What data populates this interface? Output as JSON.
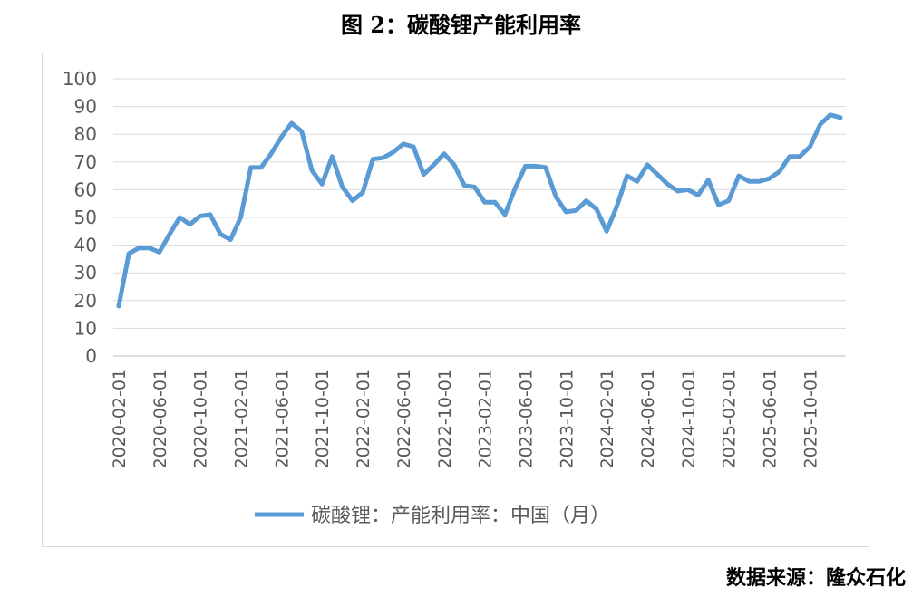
{
  "title": "图 2：碳酸锂产能利用率",
  "source": "数据来源：隆众石化",
  "chart_data": {
    "type": "line",
    "ylim": [
      0,
      100
    ],
    "yticks": [
      0,
      10,
      20,
      30,
      40,
      50,
      60,
      70,
      80,
      90,
      100
    ],
    "grid": true,
    "legend_position": "bottom",
    "x": [
      "2020-02-01",
      "2020-03-01",
      "2020-04-01",
      "2020-05-01",
      "2020-06-01",
      "2020-07-01",
      "2020-08-01",
      "2020-09-01",
      "2020-10-01",
      "2020-11-01",
      "2020-12-01",
      "2021-01-01",
      "2021-02-01",
      "2021-03-01",
      "2021-04-01",
      "2021-05-01",
      "2021-06-01",
      "2021-07-01",
      "2021-08-01",
      "2021-09-01",
      "2021-10-01",
      "2021-11-01",
      "2021-12-01",
      "2022-01-01",
      "2022-02-01",
      "2022-03-01",
      "2022-04-01",
      "2022-05-01",
      "2022-06-01",
      "2022-07-01",
      "2022-08-01",
      "2022-09-01",
      "2022-10-01",
      "2022-11-01",
      "2022-12-01",
      "2023-01-01",
      "2023-02-01",
      "2023-03-01",
      "2023-04-01",
      "2023-05-01",
      "2023-06-01",
      "2023-07-01",
      "2023-08-01",
      "2023-09-01",
      "2023-10-01",
      "2023-11-01",
      "2023-12-01",
      "2024-01-01",
      "2024-02-01",
      "2024-03-01",
      "2024-04-01",
      "2024-05-01",
      "2024-06-01",
      "2024-07-01",
      "2024-08-01",
      "2024-09-01",
      "2024-10-01",
      "2024-11-01",
      "2024-12-01",
      "2025-01-01",
      "2025-02-01",
      "2025-03-01",
      "2025-04-01",
      "2025-05-01",
      "2025-06-01",
      "2025-07-01",
      "2025-08-01",
      "2025-09-01",
      "2025-10-01",
      "2025-11-01",
      "2025-12-01",
      "2026-01-01"
    ],
    "xtick_labels": [
      "2020-02-01",
      "2020-06-01",
      "2020-10-01",
      "2021-02-01",
      "2021-06-01",
      "2021-10-01",
      "2022-02-01",
      "2022-06-01",
      "2022-10-01",
      "2023-02-01",
      "2023-06-01",
      "2023-10-01",
      "2024-02-01",
      "2024-06-01",
      "2024-10-01",
      "2025-02-01",
      "2025-06-01",
      "2025-10-01"
    ],
    "series": [
      {
        "name": "碳酸锂：产能利用率：中国（月）",
        "color": "#5b9bd5",
        "values": [
          18,
          37,
          39,
          39,
          37.5,
          44,
          50,
          47.5,
          50.5,
          51,
          44,
          42,
          50,
          68,
          68,
          73,
          79,
          84,
          81,
          67,
          62,
          72,
          61,
          56,
          59,
          71,
          71.5,
          73.5,
          76.5,
          75.5,
          65.5,
          69,
          73,
          69,
          61.5,
          61,
          55.5,
          55.5,
          51,
          60.5,
          68.5,
          68.5,
          68,
          57.5,
          52,
          52.5,
          56,
          53,
          45,
          54,
          65,
          63,
          69,
          65.5,
          62,
          59.5,
          60,
          58,
          63.5,
          54.5,
          56,
          65,
          63,
          63,
          64,
          66.5,
          72,
          72,
          75.5,
          83.5,
          87,
          86
        ]
      }
    ]
  }
}
